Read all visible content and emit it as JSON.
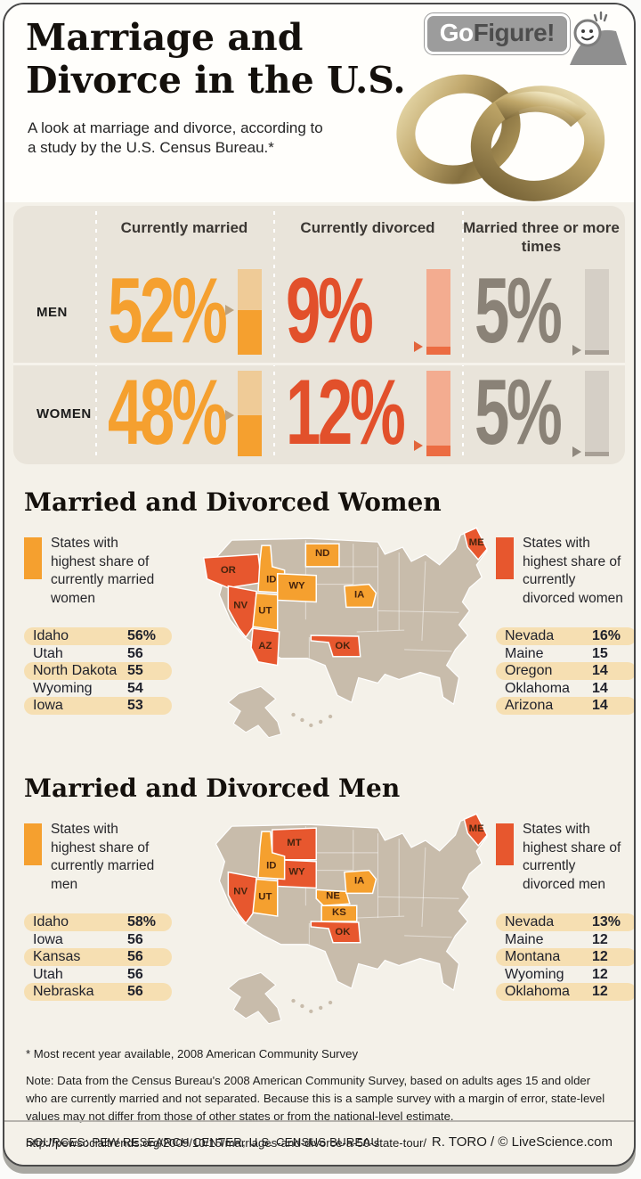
{
  "header": {
    "badge": {
      "go": "Go",
      "figure": "Figure!"
    },
    "title_line1": "Marriage and",
    "title_line2": "Divorce in the U.S.",
    "subtitle_line1": "A look at marriage and divorce, according to",
    "subtitle_line2": "a study by the U.S. Census Bureau.*"
  },
  "stats_table": {
    "columns": [
      "Currently married",
      "Currently divorced",
      "Married three or more times"
    ],
    "rows": [
      {
        "label": "MEN",
        "values": [
          {
            "pct": "52%",
            "num": 52
          },
          {
            "pct": "9%",
            "num": 9
          },
          {
            "pct": "5%",
            "num": 5
          }
        ]
      },
      {
        "label": "WOMEN",
        "values": [
          {
            "pct": "48%",
            "num": 48
          },
          {
            "pct": "12%",
            "num": 12
          },
          {
            "pct": "5%",
            "num": 5
          }
        ]
      }
    ]
  },
  "sections": [
    {
      "title": "Married and Divorced Women",
      "legend_married": "States with highest share of currently married women",
      "legend_divorced": "States with highest share of currently divorced women",
      "married_list": [
        [
          "Idaho",
          "56%"
        ],
        [
          "Utah",
          "56"
        ],
        [
          "North Dakota",
          "55"
        ],
        [
          "Wyoming",
          "54"
        ],
        [
          "Iowa",
          "53"
        ]
      ],
      "divorced_list": [
        [
          "Nevada",
          "16%"
        ],
        [
          "Maine",
          "15"
        ],
        [
          "Oregon",
          "14"
        ],
        [
          "Oklahoma",
          "14"
        ],
        [
          "Arizona",
          "14"
        ]
      ],
      "map_states": [
        {
          "abbr": "OR",
          "category": "divorced"
        },
        {
          "abbr": "NV",
          "category": "divorced"
        },
        {
          "abbr": "AZ",
          "category": "divorced"
        },
        {
          "abbr": "OK",
          "category": "divorced"
        },
        {
          "abbr": "ME",
          "category": "divorced"
        },
        {
          "abbr": "ID",
          "category": "married"
        },
        {
          "abbr": "UT",
          "category": "married"
        },
        {
          "abbr": "WY",
          "category": "married"
        },
        {
          "abbr": "ND",
          "category": "married"
        },
        {
          "abbr": "IA",
          "category": "married"
        }
      ]
    },
    {
      "title": "Married and Divorced Men",
      "legend_married": "States with highest share of currently married men",
      "legend_divorced": "States with highest share of currently divorced men",
      "married_list": [
        [
          "Idaho",
          "58%"
        ],
        [
          "Iowa",
          "56"
        ],
        [
          "Kansas",
          "56"
        ],
        [
          "Utah",
          "56"
        ],
        [
          "Nebraska",
          "56"
        ]
      ],
      "divorced_list": [
        [
          "Nevada",
          "13%"
        ],
        [
          "Maine",
          "12"
        ],
        [
          "Montana",
          "12"
        ],
        [
          "Wyoming",
          "12"
        ],
        [
          "Oklahoma",
          "12"
        ]
      ],
      "map_states": [
        {
          "abbr": "MT",
          "category": "divorced"
        },
        {
          "abbr": "WY",
          "category": "divorced"
        },
        {
          "abbr": "NV",
          "category": "divorced"
        },
        {
          "abbr": "OK",
          "category": "divorced"
        },
        {
          "abbr": "ME",
          "category": "divorced"
        },
        {
          "abbr": "ID",
          "category": "married"
        },
        {
          "abbr": "UT",
          "category": "married"
        },
        {
          "abbr": "NE",
          "category": "married"
        },
        {
          "abbr": "KS",
          "category": "married"
        },
        {
          "abbr": "IA",
          "category": "married"
        }
      ]
    }
  ],
  "footer": {
    "footnote": "* Most recent year available, 2008 American Community Survey",
    "note": "Note: Data from the Census Bureau's 2008 American Community Survey, based on adults ages 15 and older who are currently married and not separated. Because this is a sample survey with a margin of error, state-level values may not differ from those of other states or from the national-level estimate.",
    "url": "http://pewsocialtrends.org/2009/10/15/marriages-and-divorce-a-50-state-tour/",
    "sources": "SOURCES: PEW RESEARCH CENTER, U.S. CENSUS BUREAU",
    "credit": "R. TORO / © LiveScience.com"
  },
  "colors": {
    "married": "#F5A02F",
    "married_light": "#EFCB97",
    "divorced": "#E2502B",
    "divorced_fill": "#EC6C42",
    "divorced_light": "#F3AC90",
    "multi": "#8A8277",
    "multi_fill": "#A8A096",
    "multi_light": "#D5CFC6",
    "map_base": "#C8BCAB",
    "map_divorced": "#E7572E",
    "row_highlight": "#F6DFB2",
    "panel_bg": "#E9E4DA",
    "page_bg": "#F4F1E9",
    "badge_bg": "#9C9C9C"
  },
  "chart_data": [
    {
      "type": "bar",
      "title": "Marriage and Divorce in the U.S.",
      "categories": [
        "Currently married",
        "Currently divorced",
        "Married three or more times"
      ],
      "series": [
        {
          "name": "Men",
          "values": [
            52,
            9,
            5
          ]
        },
        {
          "name": "Women",
          "values": [
            48,
            12,
            5
          ]
        }
      ],
      "unit": "%",
      "ylim": [
        0,
        100
      ],
      "legend_position": "left-row-labels"
    },
    {
      "type": "table",
      "title": "States with highest share of currently married women",
      "rows": [
        [
          "Idaho",
          56
        ],
        [
          "Utah",
          56
        ],
        [
          "North Dakota",
          55
        ],
        [
          "Wyoming",
          54
        ],
        [
          "Iowa",
          53
        ]
      ],
      "unit": "%"
    },
    {
      "type": "table",
      "title": "States with highest share of currently divorced women",
      "rows": [
        [
          "Nevada",
          16
        ],
        [
          "Maine",
          15
        ],
        [
          "Oregon",
          14
        ],
        [
          "Oklahoma",
          14
        ],
        [
          "Arizona",
          14
        ]
      ],
      "unit": "%"
    },
    {
      "type": "table",
      "title": "States with highest share of currently married men",
      "rows": [
        [
          "Idaho",
          58
        ],
        [
          "Iowa",
          56
        ],
        [
          "Kansas",
          56
        ],
        [
          "Utah",
          56
        ],
        [
          "Nebraska",
          56
        ]
      ],
      "unit": "%"
    },
    {
      "type": "table",
      "title": "States with highest share of currently divorced men",
      "rows": [
        [
          "Nevada",
          13
        ],
        [
          "Maine",
          12
        ],
        [
          "Montana",
          12
        ],
        [
          "Wyoming",
          12
        ],
        [
          "Oklahoma",
          12
        ]
      ],
      "unit": "%"
    }
  ]
}
